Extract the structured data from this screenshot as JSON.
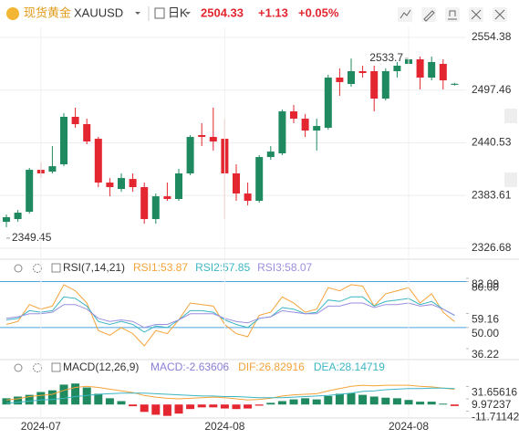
{
  "header": {
    "name": "现货黄金",
    "symbol": "XAUUSD",
    "period": "日K",
    "price": 2504.33,
    "change": "+1.13",
    "change_pct": "+0.05%"
  },
  "chart_data": [
    {
      "type": "candlestick",
      "up_color": "#1f8a5f",
      "down_color": "#e3262f",
      "ylim": [
        2318.8,
        2565.2
      ],
      "yticks": [
        2554.38,
        2497.46,
        2440.53,
        2383.61,
        2326.68
      ],
      "grid": true,
      "open": [
        2355.2,
        2358.2,
        2366.1,
        2411.4,
        2409.4,
        2417.3,
        2468.6,
        2460.7,
        2444.9,
        2397.6,
        2390.7,
        2401.5,
        2392.7,
        2358.2,
        2382.8,
        2379.9,
        2407.5,
        2448.9,
        2446.9,
        2444.9,
        2407.5,
        2385.8,
        2377.9,
        2425.2,
        2429.2,
        2474.5,
        2466.6,
        2453.8,
        2456.8,
        2511.0,
        2504.1,
        2517.9,
        2517.9,
        2488.3,
        2517.9,
        2525.8,
        2530.7,
        2511.0,
        2525.8,
        2503.2
      ],
      "high": [
        2363.1,
        2368.0,
        2413.4,
        2419.3,
        2437.0,
        2472.5,
        2478.5,
        2466.6,
        2446.9,
        2402.5,
        2407.5,
        2407.5,
        2397.6,
        2385.8,
        2397.6,
        2412.4,
        2448.9,
        2461.7,
        2478.5,
        2466.6,
        2417.3,
        2397.6,
        2427.2,
        2437.0,
        2476.5,
        2481.4,
        2471.6,
        2466.6,
        2514.0,
        2520.9,
        2531.61,
        2523.8,
        2523.8,
        2520.9,
        2527.8,
        2533.7,
        2533.7,
        2533.7,
        2530.7,
        2505.3
      ],
      "low": [
        2349.45,
        2355.2,
        2364.1,
        2402.5,
        2407.5,
        2415.3,
        2456.8,
        2439.0,
        2392.7,
        2382.8,
        2387.7,
        2387.7,
        2353.2,
        2353.2,
        2377.9,
        2377.9,
        2405.5,
        2437.0,
        2432.1,
        2358.2,
        2377.9,
        2373.0,
        2375.9,
        2422.3,
        2427.2,
        2461.7,
        2446.9,
        2432.1,
        2454.8,
        2491.3,
        2501.1,
        2511.0,
        2474.5,
        2486.3,
        2511.0,
        2517.9,
        2498.2,
        2508.0,
        2498.2,
        2502.3
      ],
      "close": [
        2360.2,
        2365.1,
        2411.4,
        2407.5,
        2415.3,
        2468.6,
        2460.7,
        2442.0,
        2397.6,
        2392.7,
        2402.5,
        2392.7,
        2358.2,
        2382.8,
        2379.9,
        2407.5,
        2446.9,
        2446.9,
        2442.0,
        2407.5,
        2385.8,
        2377.9,
        2425.2,
        2431.1,
        2474.5,
        2466.6,
        2453.8,
        2458.7,
        2511.0,
        2506.1,
        2517.9,
        2515.9,
        2488.3,
        2517.9,
        2523.8,
        2530.7,
        2511.0,
        2527.8,
        2508.0,
        2504.33
      ]
    },
    {
      "type": "line",
      "title": "RSI(7,14,21)",
      "ylim": [
        36.22,
        82.09
      ],
      "yticks": [
        {
          "value": 80,
          "label": "80.00"
        },
        82.09,
        59.16,
        {
          "value": 50,
          "label": "50.00"
        },
        36.22
      ],
      "reference_lines": [
        80,
        50
      ],
      "series": [
        {
          "name": "RSI1",
          "color": "#f5a33a",
          "values": [
            52,
            54,
            65,
            62,
            64,
            78,
            74,
            66,
            48,
            45,
            50,
            46,
            38,
            48,
            46,
            55,
            66,
            65,
            64,
            52,
            46,
            44,
            58,
            60,
            70,
            66,
            60,
            62,
            76,
            74,
            78,
            77,
            64,
            72,
            74,
            76,
            66,
            72,
            60,
            53.87
          ]
        },
        {
          "name": "RSI2",
          "color": "#3cb6c2",
          "values": [
            55,
            56,
            61,
            60,
            61,
            70,
            69,
            64,
            54,
            52,
            54,
            52,
            47,
            51,
            50,
            55,
            61,
            61,
            60,
            55,
            52,
            50,
            56,
            57,
            63,
            62,
            59,
            60,
            68,
            67,
            70,
            70,
            64,
            67,
            68,
            69,
            65,
            67,
            62,
            57.85
          ]
        },
        {
          "name": "RSI3",
          "color": "#9b8fe0",
          "values": [
            56,
            57,
            59,
            59,
            60,
            65,
            65,
            62,
            56,
            54,
            55,
            54,
            50,
            52,
            52,
            55,
            59,
            59,
            59,
            56,
            54,
            53,
            56,
            57,
            61,
            60,
            59,
            59,
            64,
            64,
            66,
            66,
            63,
            65,
            65,
            66,
            64,
            65,
            62,
            58.07
          ]
        }
      ]
    },
    {
      "type": "macd",
      "title": "MACD(12,26,9)",
      "ylim": [
        -26.97,
        61.4
      ],
      "yticks": [
        31.65616,
        9.97237,
        -11.71142
      ],
      "categories": [
        null,
        null,
        null,
        "2024-07",
        null,
        null,
        null,
        null,
        null,
        null,
        null,
        null,
        null,
        null,
        null,
        null,
        null,
        null,
        null,
        "2024-08",
        null,
        null,
        null,
        null,
        null,
        null,
        null,
        null,
        null,
        null,
        null,
        null,
        null,
        null,
        null,
        "2024-08",
        null,
        null,
        null,
        null
      ],
      "histogram": {
        "name": "MACD",
        "color": "#8a7fd8",
        "up_color": "#1f8a5f",
        "down_color": "#e3262f",
        "values": [
          11,
          14,
          17,
          22,
          25,
          35,
          37,
          30,
          19,
          11,
          6,
          -3,
          -13,
          -18,
          -20,
          -16,
          -8,
          -5,
          -5,
          -7,
          -8,
          -7,
          -2,
          3,
          6,
          9,
          11,
          9,
          15,
          19,
          20,
          17,
          14,
          12,
          11,
          8,
          5,
          5,
          1.5,
          -2.63606
        ]
      },
      "series": [
        {
          "name": "DIF",
          "color": "#f5a33a",
          "values": [
            8,
            10,
            14,
            16,
            18,
            25,
            30,
            32,
            30,
            27,
            24,
            21,
            16,
            13,
            11,
            10,
            11,
            12,
            13,
            12,
            10,
            8,
            9,
            11,
            15,
            17,
            18,
            19,
            24,
            28,
            32,
            34,
            33,
            34,
            34,
            34,
            32,
            31,
            29,
            26.82916
          ]
        },
        {
          "name": "DEA",
          "color": "#3cb6c2",
          "values": [
            2,
            4,
            6,
            8,
            9,
            11,
            14,
            16,
            18,
            19,
            20,
            20,
            20,
            19,
            18,
            17,
            16,
            15,
            15,
            14,
            14,
            13,
            12,
            12,
            12,
            13,
            14,
            15,
            16,
            18,
            20,
            23,
            24,
            26,
            27,
            28,
            28,
            29,
            29,
            28.14719
          ]
        }
      ]
    }
  ]
}
